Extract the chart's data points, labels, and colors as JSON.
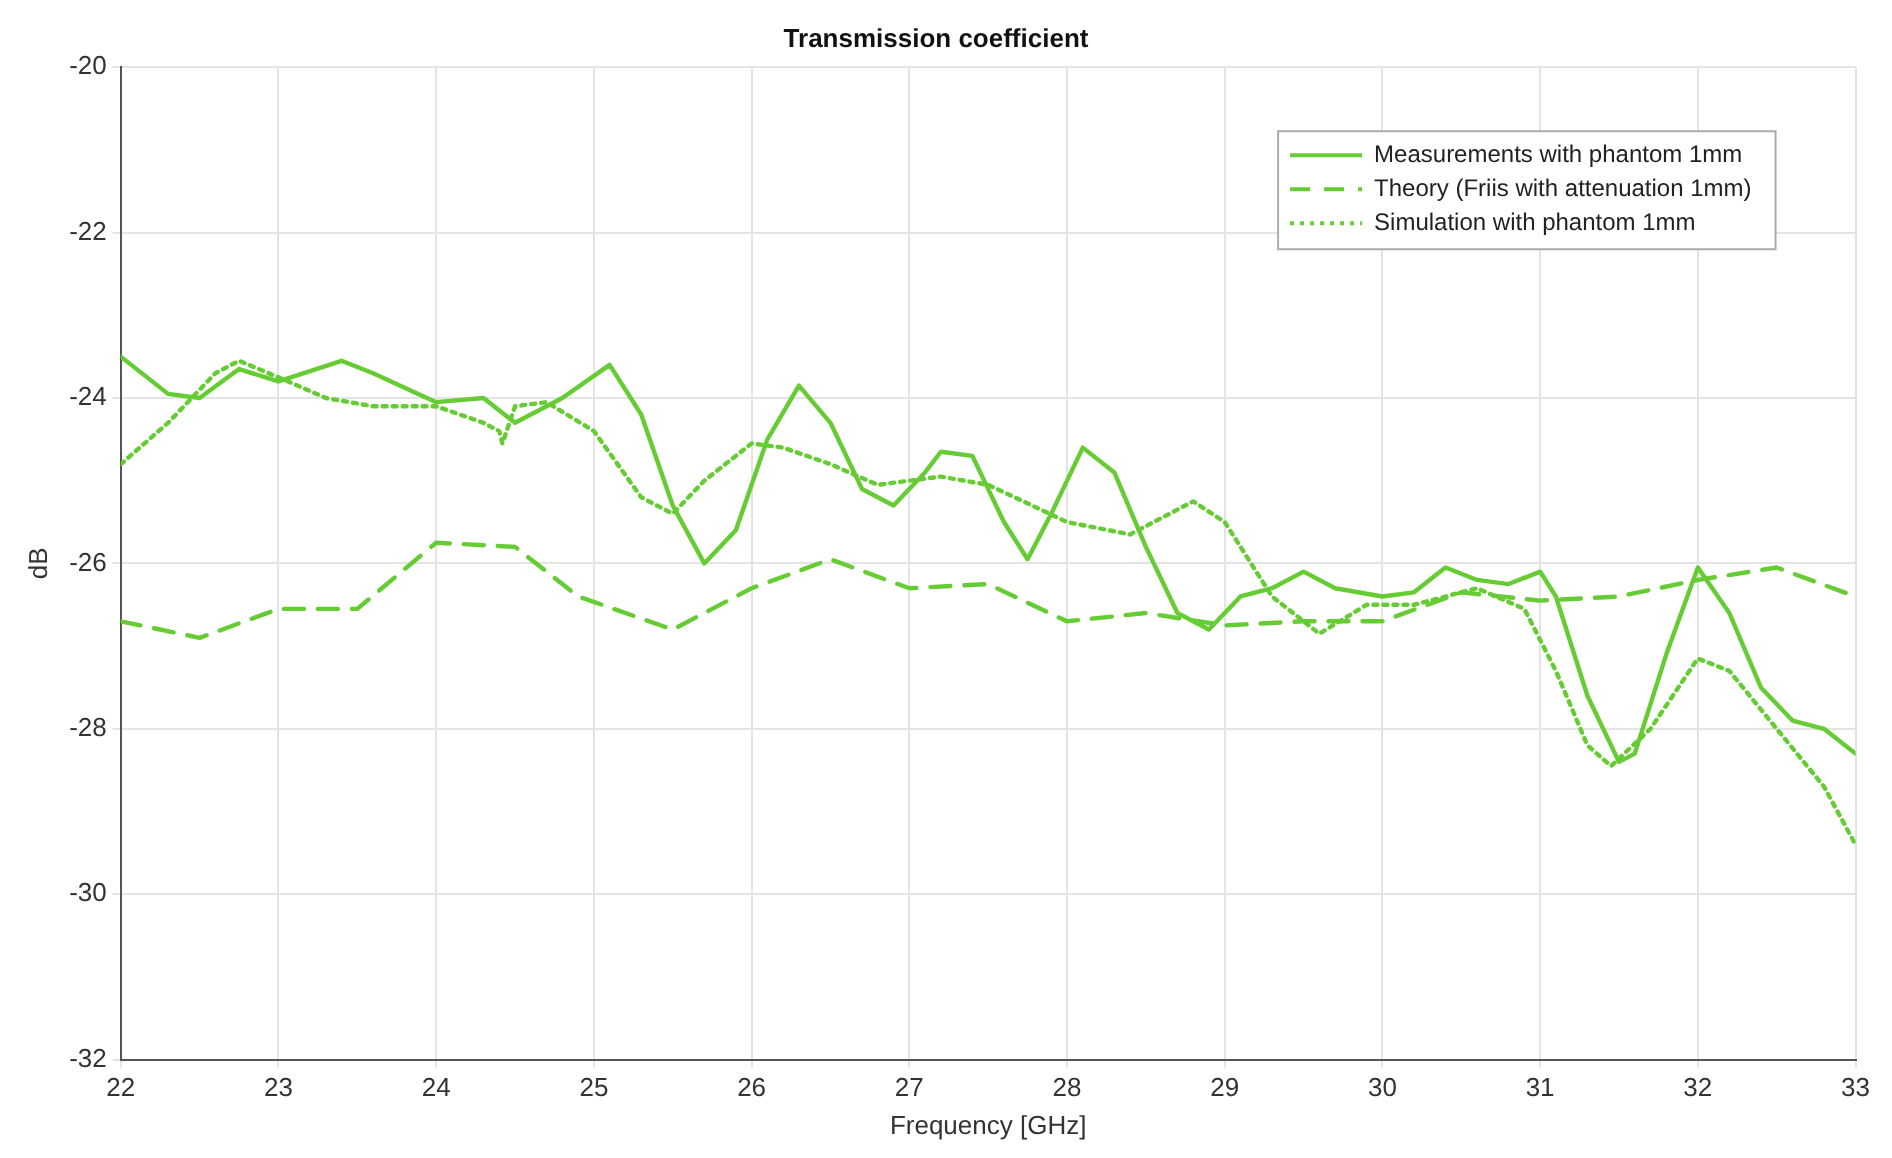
{
  "chart_data": {
    "type": "line",
    "title": "Transmission coefficient",
    "xlabel": "Frequency [GHz]",
    "ylabel": "dB",
    "xlim": [
      22,
      33
    ],
    "xticks": [
      22,
      23,
      24,
      25,
      26,
      27,
      28,
      29,
      30,
      31,
      32,
      33
    ],
    "ylim": [
      -32,
      -20
    ],
    "yticks": [
      -32,
      -30,
      -28,
      -26,
      -24,
      -22,
      -20
    ],
    "grid": true,
    "legend": "top right",
    "marker": "none",
    "series": [
      {
        "name": "Measurements with phantom 1mm",
        "color": "#66cc33",
        "line_style": "solid",
        "x": [
          22,
          22.3,
          22.5,
          22.75,
          23,
          23.4,
          23.6,
          24,
          24.3,
          24.5,
          24.8,
          25.1,
          25.3,
          25.5,
          25.7,
          25.9,
          26.1,
          26.3,
          26.5,
          26.7,
          26.9,
          27.1,
          27.2,
          27.4,
          27.6,
          27.75,
          27.9,
          28.1,
          28.3,
          28.5,
          28.7,
          28.9,
          29.1,
          29.3,
          29.5,
          29.7,
          30,
          30.2,
          30.4,
          30.6,
          30.8,
          31,
          31.1,
          31.3,
          31.5,
          31.6,
          31.8,
          32,
          32.2,
          32.4,
          32.6,
          32.8,
          33
        ],
        "values": [
          -23.5,
          -23.95,
          -24,
          -23.65,
          -23.8,
          -23.55,
          -23.7,
          -24.05,
          -24,
          -24.3,
          -24,
          -23.6,
          -24.2,
          -25.3,
          -26,
          -25.6,
          -24.5,
          -23.85,
          -24.3,
          -25.1,
          -25.3,
          -24.9,
          -24.65,
          -24.7,
          -25.5,
          -25.95,
          -25.4,
          -24.6,
          -24.9,
          -25.8,
          -26.6,
          -26.8,
          -26.4,
          -26.3,
          -26.1,
          -26.3,
          -26.4,
          -26.35,
          -26.05,
          -26.2,
          -26.25,
          -26.1,
          -26.4,
          -27.6,
          -28.4,
          -28.3,
          -27.1,
          -26.05,
          -26.6,
          -27.5,
          -27.9,
          -28,
          -28.3
        ]
      },
      {
        "name": "Theory (Friis with attenuation 1mm)",
        "color": "#66cc33",
        "line_style": "dashed",
        "x": [
          22,
          22.5,
          23,
          23.5,
          24,
          24.5,
          24.9,
          25.5,
          26,
          26.5,
          27,
          27.5,
          28,
          28.5,
          29,
          29.5,
          30,
          30.5,
          31,
          31.5,
          32,
          32.5,
          33
        ],
        "values": [
          -26.7,
          -26.9,
          -26.55,
          -26.55,
          -25.75,
          -25.8,
          -26.4,
          -26.8,
          -26.3,
          -25.95,
          -26.3,
          -26.25,
          -26.7,
          -26.6,
          -26.75,
          -26.7,
          -26.7,
          -26.35,
          -26.45,
          -26.4,
          -26.2,
          -26.05,
          -26.4
        ]
      },
      {
        "name": "Simulation with phantom 1mm",
        "color": "#66cc33",
        "line_style": "dotted",
        "x": [
          22,
          22.3,
          22.6,
          22.75,
          23,
          23.3,
          23.6,
          24,
          24.3,
          24.4,
          24.42,
          24.5,
          24.7,
          25,
          25.3,
          25.5,
          25.7,
          26,
          26.2,
          26.5,
          26.8,
          27.2,
          27.5,
          28,
          28.4,
          28.8,
          29,
          29.3,
          29.6,
          29.9,
          30.2,
          30.6,
          30.9,
          31.1,
          31.3,
          31.45,
          31.7,
          32,
          32.2,
          32.5,
          32.8,
          33
        ],
        "values": [
          -24.8,
          -24.3,
          -23.7,
          -23.55,
          -23.75,
          -24,
          -24.1,
          -24.1,
          -24.3,
          -24.4,
          -24.55,
          -24.1,
          -24.05,
          -24.4,
          -25.2,
          -25.4,
          -25,
          -24.55,
          -24.6,
          -24.8,
          -25.05,
          -24.95,
          -25.05,
          -25.5,
          -25.65,
          -25.25,
          -25.5,
          -26.4,
          -26.85,
          -26.5,
          -26.5,
          -26.3,
          -26.55,
          -27.3,
          -28.2,
          -28.45,
          -28,
          -27.15,
          -27.3,
          -28,
          -28.7,
          -29.4
        ]
      }
    ]
  }
}
